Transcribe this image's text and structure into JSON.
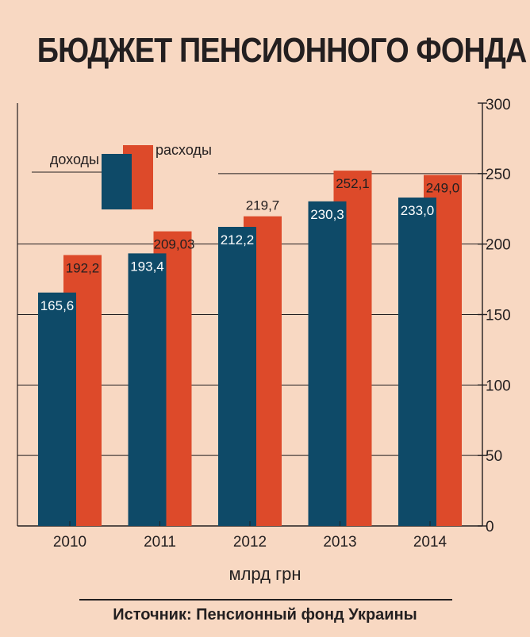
{
  "page": {
    "title": "БЮДЖЕТ ПЕНСИОННОГО ФОНДА",
    "unit": "млрд грн",
    "source": "Источник: Пенсионный фонд Украины"
  },
  "colors": {
    "background": "#f8d8c2",
    "income": "#0e4a68",
    "expense": "#dd4a2a",
    "text": "#231f20"
  },
  "chart_data": {
    "type": "bar",
    "categories": [
      "2010",
      "2011",
      "2012",
      "2013",
      "2014"
    ],
    "series": [
      {
        "name": "доходы",
        "values": [
          165.6,
          193.4,
          212.2,
          230.3,
          233.0
        ],
        "labels": [
          "165,6",
          "193,4",
          "212,2",
          "230,3",
          "233,0"
        ]
      },
      {
        "name": "расходы",
        "values": [
          192.2,
          209.03,
          219.7,
          252.1,
          249.0
        ],
        "labels": [
          "192,2",
          "209,03",
          "219,7",
          "252,1",
          "249,0"
        ]
      }
    ],
    "ylim": [
      0,
      300
    ],
    "yticks": [
      "0",
      "50",
      "100",
      "150",
      "200",
      "250",
      "300"
    ],
    "y_axis_side": "right",
    "grid": true,
    "legend_placement": "top-left",
    "xlabel": "",
    "ylabel": "млрд грн"
  }
}
